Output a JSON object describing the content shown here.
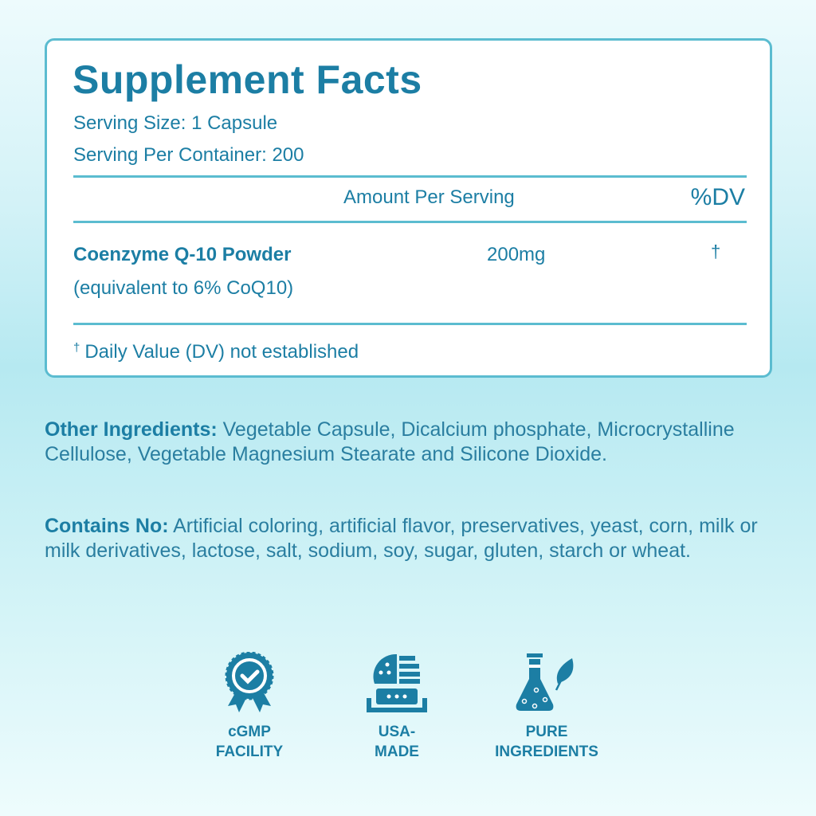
{
  "facts": {
    "title": "Supplement Facts",
    "serving_size": "Serving Size: 1 Capsule",
    "servings_per_container": "Serving Per Container: 200",
    "header_amount": "Amount Per Serving",
    "header_dv": "%DV",
    "ingredient": {
      "name": "Coenzyme Q-10 Powder",
      "note": "(equivalent to 6% CoQ10)",
      "amount": "200mg",
      "dv": "†"
    },
    "footnote_mark": "†",
    "footnote": "Daily Value (DV) not established"
  },
  "other_ingredients": {
    "label": "Other Ingredients:",
    "text": " Vegetable Capsule, Dicalcium phosphate, Microcrystalline Cellulose, Vegetable Magnesium Stearate and Silicone Dioxide."
  },
  "contains_no": {
    "label": "Contains No:",
    "text": " Artificial coloring, artificial flavor, preservatives, yeast, corn, milk or milk derivatives, lactose, salt, sodium, soy, sugar, gluten, starch or wheat."
  },
  "badges": [
    {
      "icon": "award-ribbon-check-icon",
      "line1": "cGMP",
      "line2": "FACILITY"
    },
    {
      "icon": "usa-flag-globe-icon",
      "line1": "USA-",
      "line2": "MADE"
    },
    {
      "icon": "flask-leaf-icon",
      "line1": "PURE",
      "line2": "INGREDIENTS"
    }
  ],
  "colors": {
    "text": "#1c7ea4",
    "border": "#5bbcd0"
  }
}
